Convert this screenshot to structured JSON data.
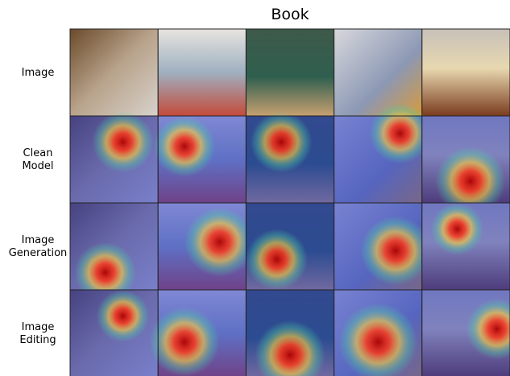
{
  "title": "Book",
  "rows": [
    {
      "label": [
        "Image"
      ]
    },
    {
      "label": [
        "Clean",
        "Model"
      ]
    },
    {
      "label": [
        "Image",
        "Generation"
      ]
    },
    {
      "label": [
        "Image",
        "Editing"
      ]
    }
  ]
}
